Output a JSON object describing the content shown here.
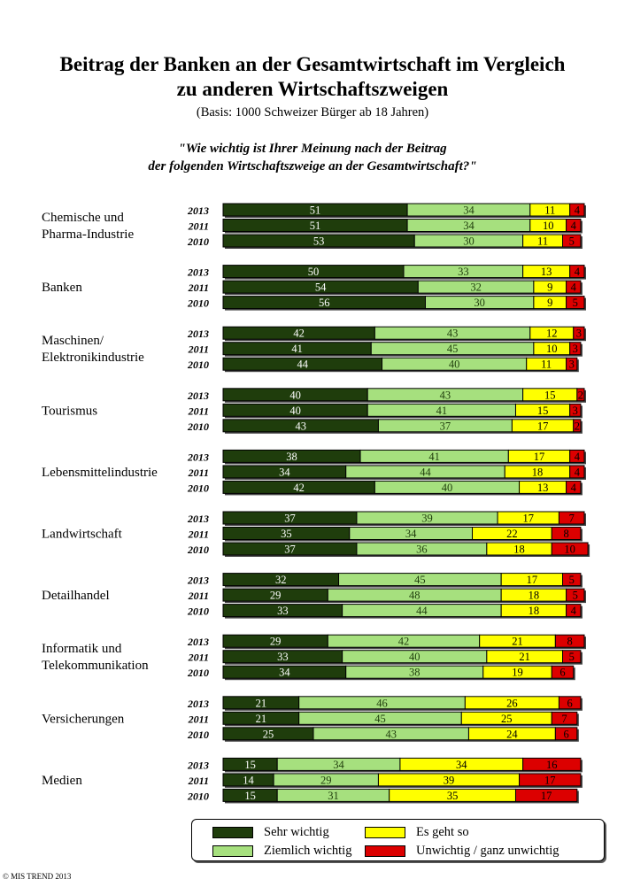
{
  "title_line1": "Beitrag der Banken an der Gesamtwirtschaft im Vergleich",
  "title_line2": "zu anderen Wirtschaftszweigen",
  "subtitle": "(Basis: 1000 Schweizer Bürger ab 18 Jahren)",
  "question_line1": "\"Wie wichtig ist Ihrer Meinung nach der Beitrag",
  "question_line2": "der folgenden Wirtschaftszweige an der Gesamtwirtschaft?\"",
  "copyright": "© MIS TREND 2013",
  "colors": {
    "sehr_wichtig": "#1f3d0c",
    "ziemlich_wichtig": "#a6e07e",
    "es_geht_so": "#ffff00",
    "unwichtig": "#dc0000"
  },
  "chart_data": {
    "type": "bar",
    "orientation": "horizontal",
    "stacked": true,
    "unit": "%",
    "years": [
      "2013",
      "2011",
      "2010"
    ],
    "series_names": [
      "Sehr wichtig",
      "Ziemlich wichtig",
      "Es geht so",
      "Unwichtig / ganz unwichtig"
    ],
    "legend_position": "bottom",
    "groups": [
      {
        "label_lines": [
          "Chemische und",
          "Pharma-Industrie"
        ],
        "rows": [
          [
            51,
            34,
            11,
            4
          ],
          [
            51,
            34,
            10,
            4
          ],
          [
            53,
            30,
            11,
            5
          ]
        ]
      },
      {
        "label_lines": [
          "Banken"
        ],
        "rows": [
          [
            50,
            33,
            13,
            4
          ],
          [
            54,
            32,
            9,
            4
          ],
          [
            56,
            30,
            9,
            5
          ]
        ]
      },
      {
        "label_lines": [
          "Maschinen/",
          "Elektronikindustrie"
        ],
        "rows": [
          [
            42,
            43,
            12,
            3
          ],
          [
            41,
            45,
            10,
            3
          ],
          [
            44,
            40,
            11,
            3
          ]
        ]
      },
      {
        "label_lines": [
          "Tourismus"
        ],
        "rows": [
          [
            40,
            43,
            15,
            2
          ],
          [
            40,
            41,
            15,
            3
          ],
          [
            43,
            37,
            17,
            2
          ]
        ]
      },
      {
        "label_lines": [
          "Lebensmittelindustrie"
        ],
        "rows": [
          [
            38,
            41,
            17,
            4
          ],
          [
            34,
            44,
            18,
            4
          ],
          [
            42,
            40,
            13,
            4
          ]
        ]
      },
      {
        "label_lines": [
          "Landwirtschaft"
        ],
        "rows": [
          [
            37,
            39,
            17,
            7
          ],
          [
            35,
            34,
            22,
            8
          ],
          [
            37,
            36,
            18,
            10
          ]
        ]
      },
      {
        "label_lines": [
          "Detailhandel"
        ],
        "rows": [
          [
            32,
            45,
            17,
            5
          ],
          [
            29,
            48,
            18,
            5
          ],
          [
            33,
            44,
            18,
            4
          ]
        ]
      },
      {
        "label_lines": [
          "Informatik und",
          "Telekommunikation"
        ],
        "rows": [
          [
            29,
            42,
            21,
            8
          ],
          [
            33,
            40,
            21,
            5
          ],
          [
            34,
            38,
            19,
            6
          ]
        ]
      },
      {
        "label_lines": [
          "Versicherungen"
        ],
        "rows": [
          [
            21,
            46,
            26,
            6
          ],
          [
            21,
            45,
            25,
            7
          ],
          [
            25,
            43,
            24,
            6
          ]
        ]
      },
      {
        "label_lines": [
          "Medien"
        ],
        "rows": [
          [
            15,
            34,
            34,
            16
          ],
          [
            14,
            29,
            39,
            17
          ],
          [
            15,
            31,
            35,
            17
          ]
        ]
      }
    ]
  }
}
